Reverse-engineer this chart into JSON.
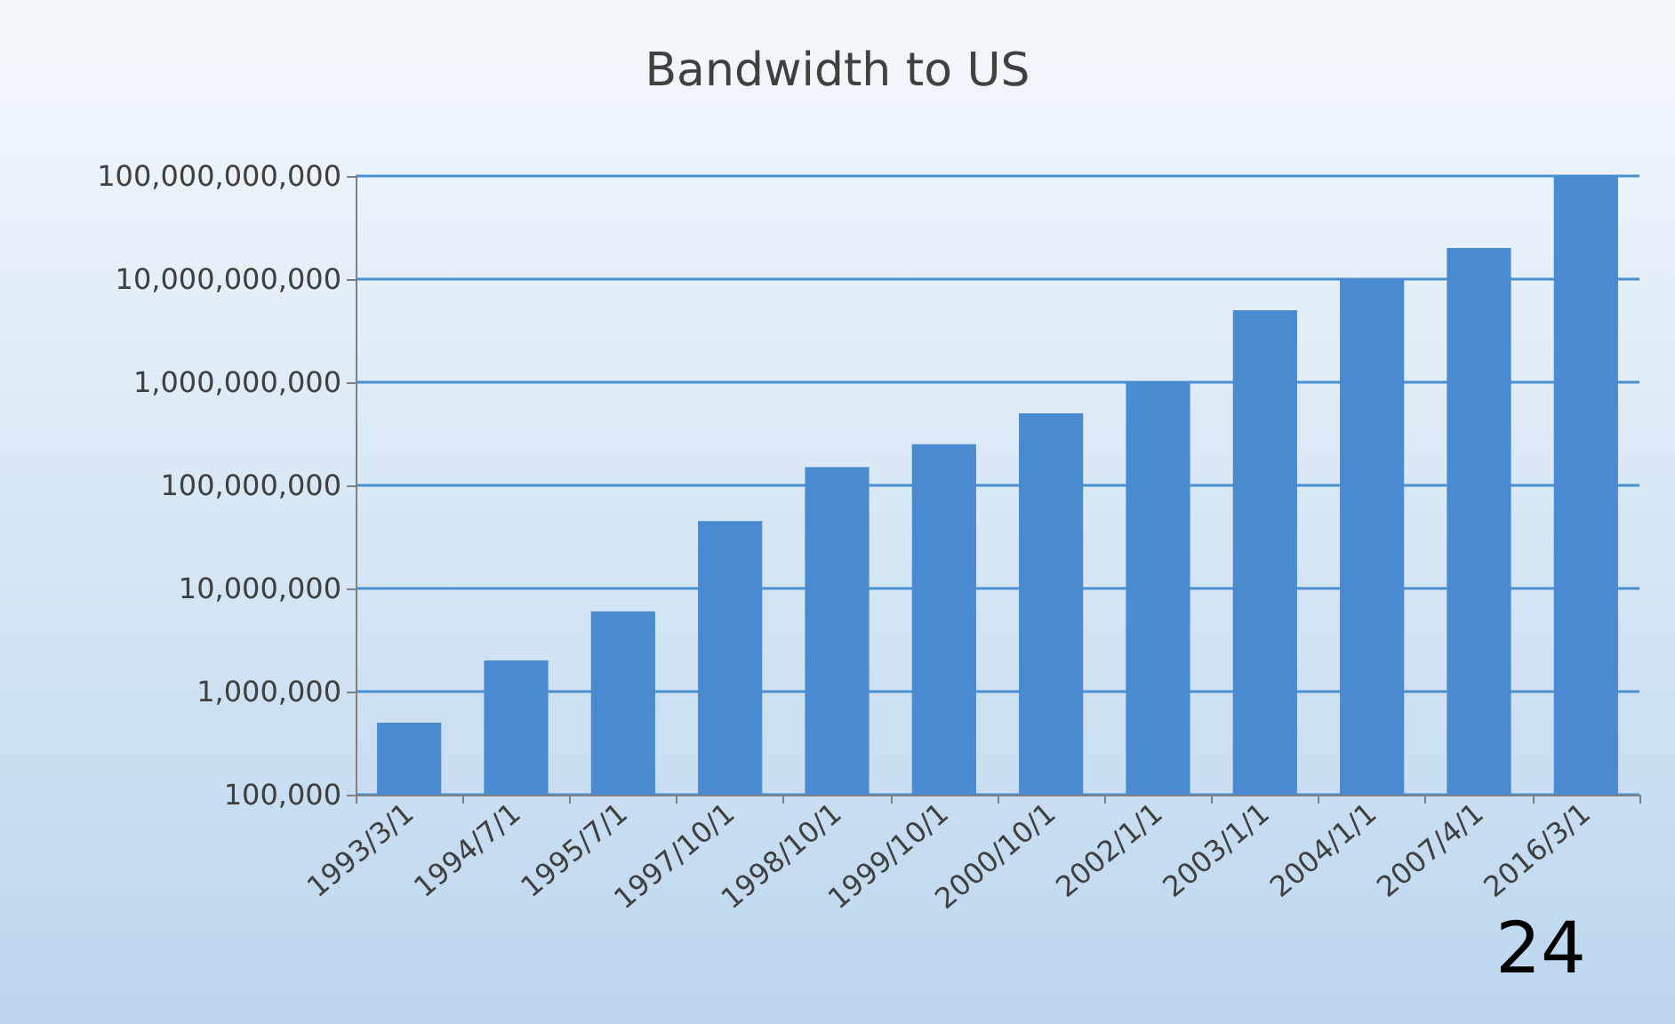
{
  "chart_data": {
    "type": "bar",
    "title": "Bandwidth to US",
    "categories": [
      "1993/3/1",
      "1994/7/1",
      "1995/7/1",
      "1997/10/1",
      "1998/10/1",
      "1999/10/1",
      "2000/10/1",
      "2002/1/1",
      "2003/1/1",
      "2004/1/1",
      "2007/4/1",
      "2016/3/1"
    ],
    "values": [
      500000,
      2000000,
      6000000,
      45000000,
      150000000,
      250000000,
      500000000,
      1000000000,
      5000000000,
      10000000000,
      20000000000,
      100000000000
    ],
    "color": "#4a8ad0",
    "log": true,
    "grid": "y",
    "ylim": [
      100000,
      100000000000
    ],
    "yticks": [
      {
        "value": 100000,
        "label": "100,000"
      },
      {
        "value": 1000000,
        "label": "1,000,000"
      },
      {
        "value": 10000000,
        "label": "10,000,000"
      },
      {
        "value": 100000000,
        "label": "100,000,000"
      },
      {
        "value": 1000000000,
        "label": "1,000,000,000"
      },
      {
        "value": 10000000000,
        "label": "10,000,000,000"
      },
      {
        "value": 100000000000,
        "label": "100,000,000,000"
      }
    ],
    "annotations": [
      "24"
    ]
  }
}
